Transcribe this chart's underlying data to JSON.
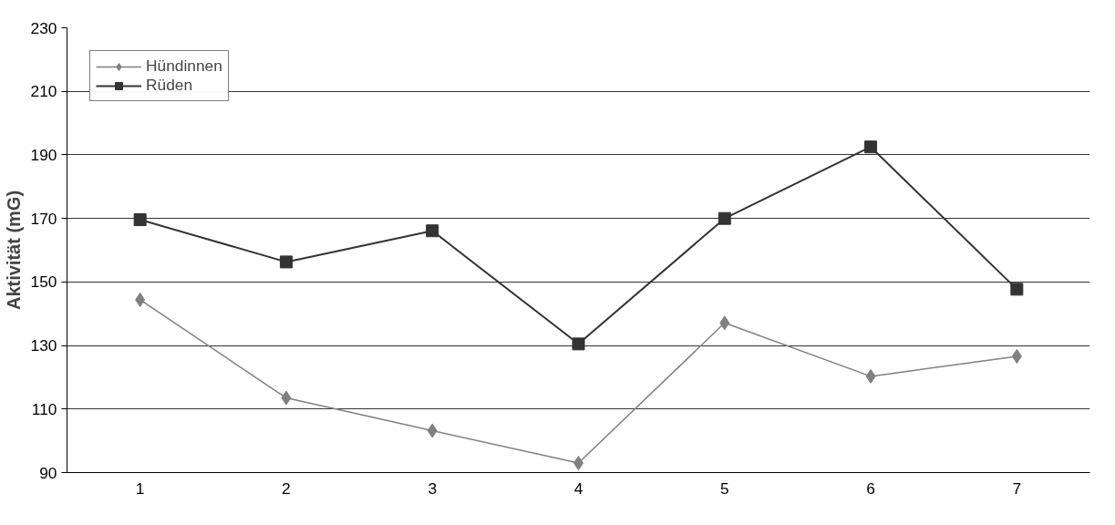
{
  "chart_data": {
    "type": "line",
    "ylabel": "Aktivität (mG)",
    "categories": [
      "1",
      "2",
      "3",
      "4",
      "5",
      "6",
      "7"
    ],
    "series": [
      {
        "name": "Hündinnen",
        "color": "#808080",
        "marker": "diamond",
        "values": [
          144.4,
          113.5,
          103.2,
          93.0,
          137.1,
          120.3,
          126.6
        ]
      },
      {
        "name": "Rüden",
        "color": "#333333",
        "marker": "square",
        "values": [
          169.6,
          156.3,
          166.1,
          130.5,
          170.0,
          192.5,
          147.7
        ]
      }
    ],
    "ylim": [
      90,
      230
    ],
    "yticks": [
      90,
      110,
      130,
      150,
      170,
      190,
      210,
      230
    ],
    "grid": "y",
    "legend": "top left"
  }
}
